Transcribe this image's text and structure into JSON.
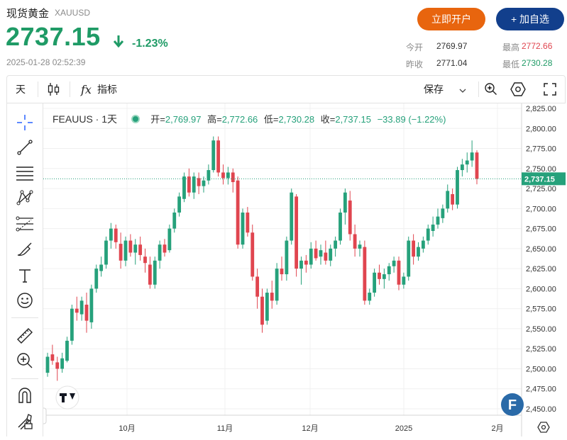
{
  "header": {
    "name": "现货黄金",
    "symbol": "XAUUSD",
    "price": "2737.15",
    "change_pct": "-1.23%",
    "timestamp": "2025-01-28 02:52:39",
    "open_account_button": "立即开户",
    "add_watch_button": "+ 加自选"
  },
  "stats": {
    "today_open_label": "今开",
    "today_open": "2769.97",
    "prev_close_label": "昨收",
    "prev_close": "2771.04",
    "high_label": "最高",
    "high": "2772.66",
    "low_label": "最低",
    "low": "2730.28"
  },
  "toolbar": {
    "interval": "天",
    "indicators": "指标",
    "save": "保存"
  },
  "legend": {
    "symbol": "FEAUUS · 1天",
    "o_label": "开=",
    "o": "2,769.97",
    "h_label": "高=",
    "h": "2,772.66",
    "l_label": "低=",
    "l": "2,730.28",
    "c_label": "收=",
    "c": "2,737.15",
    "change": "−33.89 (−1.22%)"
  },
  "colors": {
    "up": "#26a17b",
    "down": "#e0454f",
    "price_green": "#1f9b66",
    "orange": "#e8650e",
    "navy": "#123f8c"
  },
  "chart_data": {
    "type": "candlestick",
    "y_ticks": [
      "2,825.00",
      "2,800.00",
      "2,775.00",
      "2,750.00",
      "2,725.00",
      "2,700.00",
      "2,675.00",
      "2,650.00",
      "2,625.00",
      "2,600.00",
      "2,575.00",
      "2,550.00",
      "2,525.00",
      "2,500.00",
      "2,475.00",
      "2,450.00"
    ],
    "x_ticks": [
      "10月",
      "11月",
      "12月",
      "2025",
      "2月"
    ],
    "last_price_label": "2,737.15",
    "ylim": [
      2440,
      2830
    ],
    "candles": [
      [
        2495,
        2520,
        2490,
        2515
      ],
      [
        2518,
        2530,
        2505,
        2510
      ],
      [
        2508,
        2515,
        2485,
        2500
      ],
      [
        2500,
        2520,
        2495,
        2513
      ],
      [
        2510,
        2540,
        2508,
        2535
      ],
      [
        2535,
        2580,
        2530,
        2575
      ],
      [
        2575,
        2590,
        2560,
        2570
      ],
      [
        2568,
        2590,
        2560,
        2585
      ],
      [
        2580,
        2595,
        2545,
        2560
      ],
      [
        2558,
        2605,
        2550,
        2600
      ],
      [
        2600,
        2630,
        2595,
        2625
      ],
      [
        2622,
        2640,
        2615,
        2630
      ],
      [
        2630,
        2665,
        2625,
        2660
      ],
      [
        2660,
        2682,
        2650,
        2675
      ],
      [
        2675,
        2680,
        2650,
        2658
      ],
      [
        2656,
        2670,
        2625,
        2635
      ],
      [
        2635,
        2665,
        2628,
        2660
      ],
      [
        2660,
        2668,
        2640,
        2645
      ],
      [
        2645,
        2662,
        2630,
        2655
      ],
      [
        2655,
        2665,
        2635,
        2642
      ],
      [
        2640,
        2650,
        2620,
        2632
      ],
      [
        2630,
        2640,
        2600,
        2605
      ],
      [
        2605,
        2640,
        2600,
        2635
      ],
      [
        2635,
        2660,
        2625,
        2655
      ],
      [
        2655,
        2662,
        2640,
        2645
      ],
      [
        2648,
        2680,
        2645,
        2675
      ],
      [
        2675,
        2700,
        2670,
        2695
      ],
      [
        2695,
        2720,
        2690,
        2715
      ],
      [
        2712,
        2745,
        2708,
        2740
      ],
      [
        2740,
        2750,
        2715,
        2720
      ],
      [
        2720,
        2745,
        2712,
        2740
      ],
      [
        2738,
        2745,
        2718,
        2728
      ],
      [
        2728,
        2740,
        2720,
        2735
      ],
      [
        2735,
        2755,
        2730,
        2748
      ],
      [
        2748,
        2790,
        2745,
        2785
      ],
      [
        2785,
        2790,
        2740,
        2745
      ],
      [
        2745,
        2755,
        2730,
        2738
      ],
      [
        2738,
        2752,
        2730,
        2745
      ],
      [
        2745,
        2750,
        2720,
        2733
      ],
      [
        2735,
        2740,
        2650,
        2655
      ],
      [
        2655,
        2700,
        2650,
        2695
      ],
      [
        2695,
        2702,
        2665,
        2670
      ],
      [
        2670,
        2680,
        2610,
        2615
      ],
      [
        2615,
        2625,
        2575,
        2590
      ],
      [
        2590,
        2600,
        2545,
        2555
      ],
      [
        2560,
        2600,
        2555,
        2595
      ],
      [
        2595,
        2610,
        2575,
        2585
      ],
      [
        2585,
        2632,
        2580,
        2625
      ],
      [
        2625,
        2640,
        2610,
        2618
      ],
      [
        2618,
        2665,
        2610,
        2660
      ],
      [
        2660,
        2725,
        2655,
        2720
      ],
      [
        2715,
        2718,
        2615,
        2625
      ],
      [
        2625,
        2640,
        2605,
        2635
      ],
      [
        2635,
        2642,
        2620,
        2630
      ],
      [
        2630,
        2658,
        2625,
        2650
      ],
      [
        2650,
        2660,
        2635,
        2638
      ],
      [
        2640,
        2655,
        2630,
        2648
      ],
      [
        2645,
        2660,
        2630,
        2635
      ],
      [
        2635,
        2655,
        2628,
        2650
      ],
      [
        2650,
        2665,
        2640,
        2660
      ],
      [
        2660,
        2700,
        2655,
        2695
      ],
      [
        2695,
        2725,
        2680,
        2720
      ],
      [
        2710,
        2722,
        2660,
        2668
      ],
      [
        2668,
        2680,
        2640,
        2650
      ],
      [
        2650,
        2660,
        2640,
        2655
      ],
      [
        2652,
        2660,
        2580,
        2585
      ],
      [
        2585,
        2600,
        2580,
        2595
      ],
      [
        2595,
        2625,
        2590,
        2620
      ],
      [
        2620,
        2630,
        2605,
        2612
      ],
      [
        2612,
        2625,
        2600,
        2618
      ],
      [
        2618,
        2632,
        2610,
        2628
      ],
      [
        2628,
        2640,
        2620,
        2635
      ],
      [
        2635,
        2640,
        2598,
        2605
      ],
      [
        2605,
        2620,
        2600,
        2615
      ],
      [
        2615,
        2665,
        2610,
        2660
      ],
      [
        2660,
        2668,
        2630,
        2640
      ],
      [
        2640,
        2658,
        2635,
        2652
      ],
      [
        2650,
        2665,
        2645,
        2660
      ],
      [
        2660,
        2680,
        2655,
        2675
      ],
      [
        2672,
        2690,
        2665,
        2680
      ],
      [
        2680,
        2700,
        2675,
        2690
      ],
      [
        2688,
        2705,
        2682,
        2700
      ],
      [
        2700,
        2730,
        2695,
        2722
      ],
      [
        2718,
        2725,
        2698,
        2705
      ],
      [
        2705,
        2752,
        2700,
        2748
      ],
      [
        2748,
        2762,
        2740,
        2755
      ],
      [
        2755,
        2770,
        2745,
        2760
      ],
      [
        2760,
        2785,
        2752,
        2770
      ],
      [
        2769.97,
        2772.66,
        2730.28,
        2737.15
      ]
    ]
  }
}
